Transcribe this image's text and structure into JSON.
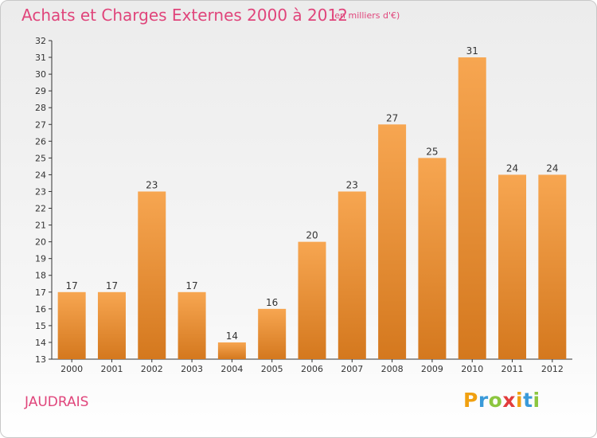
{
  "header": {
    "title": "Achats et Charges Externes 2000 à 2012",
    "subtitle": "(en milliers d'€)"
  },
  "footer": {
    "commune": "JAUDRAIS",
    "logo_letters": [
      "P",
      "r",
      "o",
      "x",
      "i",
      "t",
      "i"
    ]
  },
  "chart_data": {
    "type": "bar",
    "categories": [
      "2000",
      "2001",
      "2002",
      "2003",
      "2004",
      "2005",
      "2006",
      "2007",
      "2008",
      "2009",
      "2010",
      "2011",
      "2012"
    ],
    "values": [
      17,
      17,
      23,
      17,
      14,
      16,
      20,
      23,
      27,
      25,
      31,
      24,
      24
    ],
    "title": "Achats et Charges Externes 2000 à 2012",
    "subtitle": "(en milliers d'€)",
    "xlabel": "",
    "ylabel": "",
    "ylim": [
      13,
      32
    ],
    "yticks": [
      13,
      14,
      15,
      16,
      17,
      18,
      19,
      20,
      21,
      22,
      23,
      24,
      25,
      26,
      27,
      28,
      29,
      30,
      31,
      32
    ],
    "grid": false,
    "legend": "none",
    "colors": {
      "bar_top": "#f7a651",
      "bar_bottom": "#d4781e",
      "title": "#e0457b"
    }
  }
}
